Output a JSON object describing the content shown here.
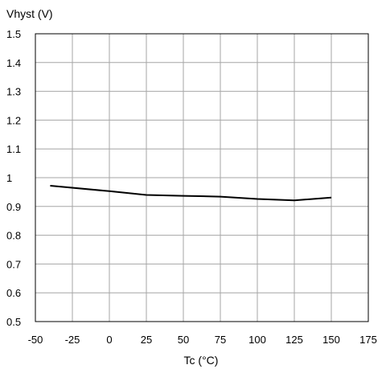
{
  "chart_data": {
    "type": "line",
    "title": "",
    "xlabel": "Tc (°C)",
    "ylabel": "Vhyst (V)",
    "xlim": [
      -50,
      175
    ],
    "ylim": [
      0.5,
      1.5
    ],
    "xticks": [
      "-50",
      "-25",
      "0",
      "25",
      "50",
      "75",
      "100",
      "125",
      "150",
      "175"
    ],
    "yticks": [
      "0.5",
      "0.6",
      "0.7",
      "0.8",
      "0.9",
      "1",
      "1.1",
      "1.2",
      "1.3",
      "1.4",
      "1.5"
    ],
    "grid": true,
    "series": [
      {
        "name": "",
        "x": [
          -40,
          0,
          25,
          50,
          75,
          100,
          125,
          150
        ],
        "y": [
          0.972,
          0.953,
          0.94,
          0.937,
          0.934,
          0.926,
          0.921,
          0.931
        ]
      }
    ],
    "colors": {
      "line": "#000000",
      "grid": "#a6a6a6",
      "frame": "#000000"
    }
  }
}
